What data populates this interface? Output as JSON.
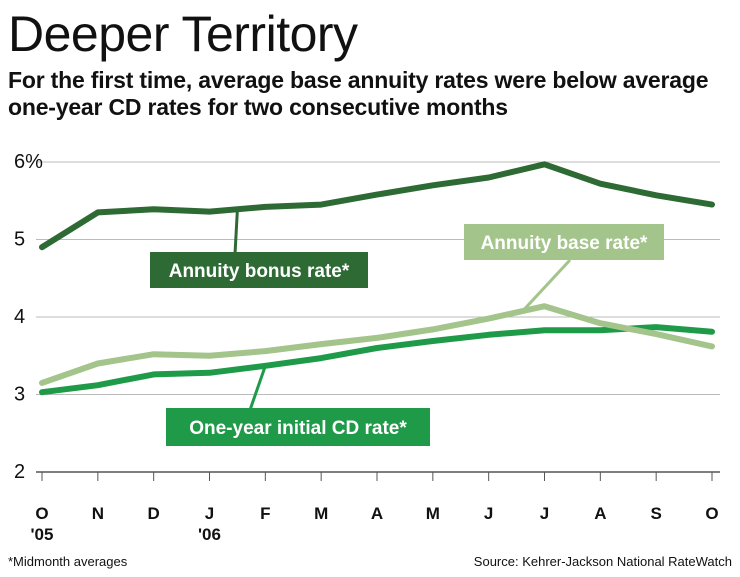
{
  "header": {
    "title": "Deeper Territory",
    "subtitle": "For the first time, average base annuity rates were below average one-year CD rates for two consecutive months"
  },
  "footer": {
    "note": "*Midmonth averages",
    "source": "Source: Kehrer-Jackson National RateWatch"
  },
  "colors": {
    "bonus": "#2e6b34",
    "base": "#a3c48a",
    "cd": "#1f9a48",
    "grid": "#bbbbbb"
  },
  "chart_data": {
    "type": "line",
    "title": "Deeper Territory",
    "xlabel": "",
    "ylabel": "",
    "categories": [
      "O",
      "N",
      "D",
      "J",
      "F",
      "M",
      "A",
      "M",
      "J",
      "J",
      "A",
      "S",
      "O"
    ],
    "year_labels": [
      "'05",
      "'06"
    ],
    "year_label_index": [
      0,
      3
    ],
    "ylim": [
      2,
      6
    ],
    "yticks": [
      2,
      3,
      4,
      5,
      6
    ],
    "ytick_labels": [
      "2",
      "3",
      "4",
      "5",
      "6%"
    ],
    "grid": true,
    "series": [
      {
        "name": "Annuity bonus rate*",
        "values": [
          4.9,
          5.35,
          5.39,
          5.36,
          5.42,
          5.45,
          5.58,
          5.7,
          5.8,
          5.97,
          5.72,
          5.57,
          5.45
        ]
      },
      {
        "name": "Annuity base rate*",
        "values": [
          3.15,
          3.4,
          3.52,
          3.5,
          3.56,
          3.65,
          3.73,
          3.84,
          3.98,
          4.14,
          3.92,
          3.78,
          3.62
        ]
      },
      {
        "name": "One-year initial CD rate*",
        "values": [
          3.03,
          3.12,
          3.26,
          3.28,
          3.37,
          3.47,
          3.6,
          3.69,
          3.77,
          3.83,
          3.83,
          3.87,
          3.81
        ]
      }
    ]
  }
}
